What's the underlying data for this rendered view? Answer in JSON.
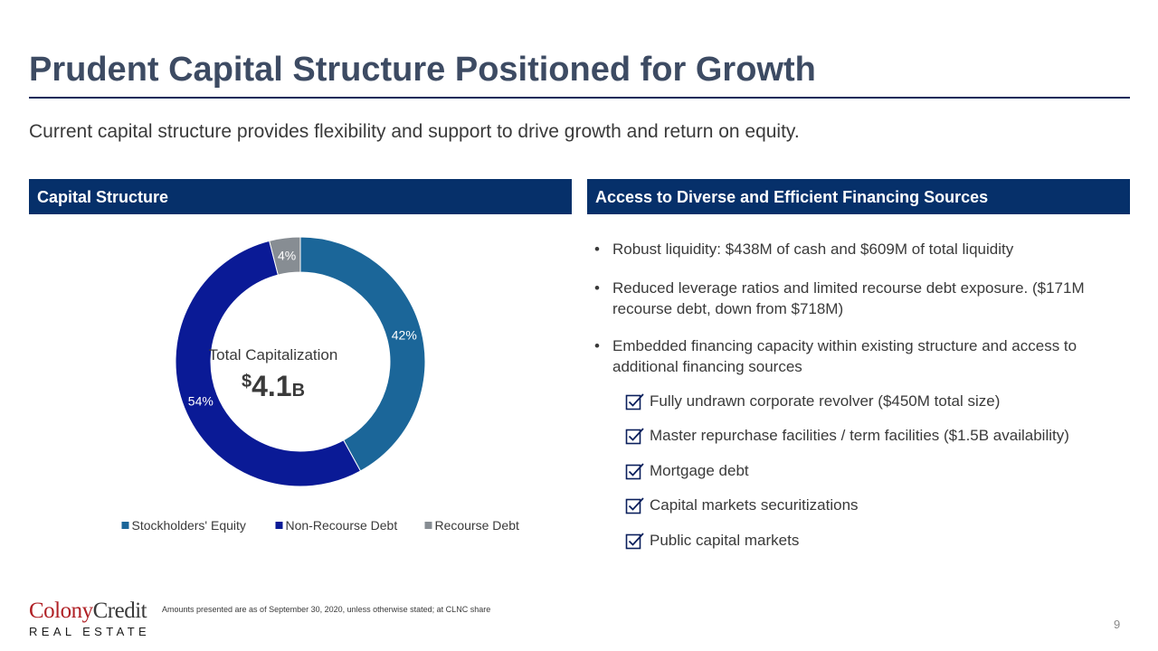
{
  "title": "Prudent Capital Structure Positioned for Growth",
  "subtitle": "Current capital structure provides flexibility and support to drive growth and return on equity.",
  "left_panel": {
    "header": "Capital Structure"
  },
  "right_panel": {
    "header": "Access to Diverse and Efficient Financing Sources",
    "bullets": [
      "Robust liquidity: $438M of cash and $609M of total liquidity",
      "Reduced leverage ratios and limited recourse debt exposure. ($171M recourse debt, down from $718M)",
      "Embedded financing capacity within existing structure and access to additional financing sources"
    ],
    "checklist": [
      "Fully undrawn corporate revolver ($450M total size)",
      "Master repurchase facilities / term facilities ($1.5B availability)",
      "Mortgage debt",
      "Capital markets securitizations",
      "Public capital markets"
    ]
  },
  "chart_data": {
    "type": "pie",
    "donut": true,
    "center_label": "Total Capitalization",
    "center_value": {
      "prefix": "$",
      "number": "4.1",
      "suffix": "B"
    },
    "series": [
      {
        "name": "Stockholders' Equity",
        "value": 42,
        "label": "42%",
        "color": "#1b6699"
      },
      {
        "name": "Non-Recourse Debt",
        "value": 54,
        "label": "54%",
        "color": "#0a1a96"
      },
      {
        "name": "Recourse Debt",
        "value": 4,
        "label": "4%",
        "color": "#878d93"
      }
    ],
    "legend_position": "bottom"
  },
  "footer": {
    "note": "Amounts presented are as of September 30, 2020, unless otherwise stated; at CLNC share",
    "page_number": "9",
    "logo": {
      "colony": "Colony",
      "credit": "Credit",
      "tagline": "REAL ESTATE"
    }
  },
  "colors": {
    "title": "#3d4b63",
    "header_bg": "#06306a",
    "accent": "#0d2b5a"
  }
}
